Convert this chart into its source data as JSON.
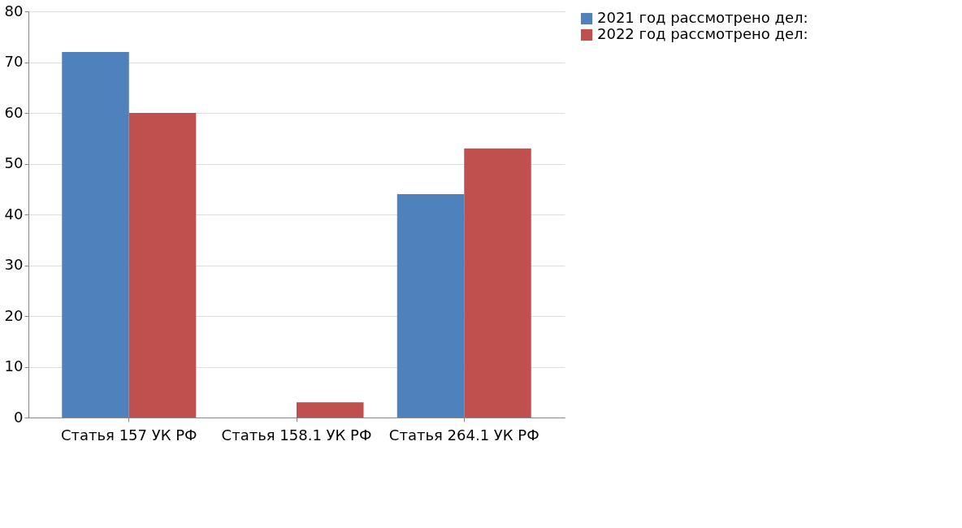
{
  "chart_data": {
    "type": "bar",
    "categories": [
      "Статья 157 УК РФ",
      "Статья 158.1 УК РФ",
      "Статья 264.1 УК РФ"
    ],
    "series": [
      {
        "name": "2021 год рассмотрено дел:",
        "color": "#4f81bd",
        "values": [
          72,
          0,
          44
        ]
      },
      {
        "name": "2022 год рассмотрено дел:",
        "color": "#c0504d",
        "values": [
          60,
          3,
          53
        ]
      }
    ],
    "ylim": [
      0,
      80
    ],
    "yticks": [
      0,
      10,
      20,
      30,
      40,
      50,
      60,
      70,
      80
    ],
    "grid": "y",
    "legend": "right"
  }
}
